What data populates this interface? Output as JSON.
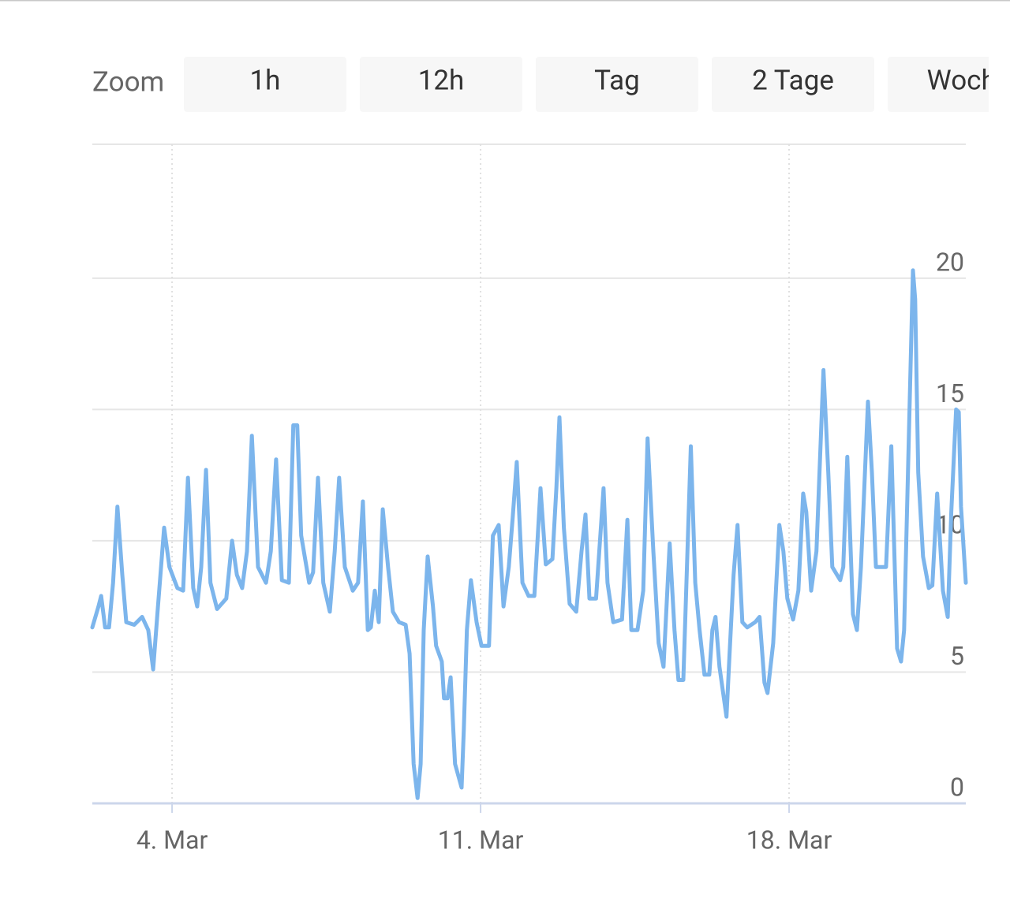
{
  "zoom": {
    "label": "Zoom",
    "buttons": [
      "1h",
      "12h",
      "Tag",
      "2 Tage",
      "Woche"
    ]
  },
  "chart_data": {
    "type": "line",
    "color": "#7cb5ec",
    "x": [
      2.19,
      2.33,
      2.39,
      2.48,
      2.57,
      2.66,
      2.76,
      2.87,
      2.96,
      3.14,
      3.32,
      3.46,
      3.57,
      3.68,
      3.82,
      3.94,
      4.12,
      4.25,
      4.36,
      4.48,
      4.57,
      4.66,
      4.77,
      4.87,
      5.02,
      5.23,
      5.36,
      5.47,
      5.59,
      5.7,
      5.81,
      5.95,
      6.13,
      6.24,
      6.36,
      6.49,
      6.65,
      6.75,
      6.84,
      6.93,
      7.11,
      7.2,
      7.31,
      7.43,
      7.58,
      7.69,
      7.79,
      7.92,
      8.1,
      8.22,
      8.33,
      8.44,
      8.51,
      8.6,
      8.69,
      8.78,
      8.9,
      9.01,
      9.15,
      9.3,
      9.39,
      9.48,
      9.57,
      9.64,
      9.71,
      9.8,
      9.92,
      9.99,
      10.12,
      10.17,
      10.25,
      10.32,
      10.42,
      10.57,
      10.62,
      10.69,
      10.78,
      10.91,
      11.02,
      11.19,
      11.28,
      11.41,
      11.52,
      11.64,
      11.73,
      11.82,
      11.95,
      12.09,
      12.22,
      12.36,
      12.48,
      12.63,
      12.72,
      12.79,
      12.89,
      13.02,
      13.17,
      13.29,
      13.38,
      13.47,
      13.62,
      13.79,
      13.88,
      14.01,
      14.21,
      14.33,
      14.42,
      14.56,
      14.69,
      14.79,
      14.92,
      15.04,
      15.15,
      15.29,
      15.4,
      15.49,
      15.6,
      15.77,
      15.87,
      15.97,
      16.08,
      16.19,
      16.26,
      16.33,
      16.42,
      16.58,
      16.65,
      16.74,
      16.83,
      16.94,
      17.05,
      17.23,
      17.33,
      17.44,
      17.51,
      17.64,
      17.78,
      17.87,
      17.96,
      18.09,
      18.21,
      18.32,
      18.39,
      18.5,
      18.62,
      18.78,
      18.89,
      18.98,
      19.16,
      19.23,
      19.32,
      19.45,
      19.54,
      19.63,
      19.79,
      19.88,
      19.97,
      20.06,
      20.2,
      20.32,
      20.45,
      20.54,
      20.61,
      20.72,
      20.81,
      20.86,
      20.93,
      21.04,
      21.17,
      21.25,
      21.36,
      21.49,
      21.6,
      21.68,
      21.79,
      21.85,
      21.9,
      22.01
    ],
    "values": [
      6.7,
      7.5,
      7.9,
      6.7,
      6.7,
      8.4,
      11.3,
      8.7,
      6.9,
      6.8,
      7.1,
      6.6,
      5.1,
      7.5,
      10.5,
      9.0,
      8.2,
      8.1,
      12.4,
      8.2,
      7.5,
      9.0,
      12.7,
      8.4,
      7.4,
      7.8,
      10.0,
      8.7,
      8.2,
      9.6,
      14.0,
      9.0,
      8.4,
      9.6,
      13.1,
      8.5,
      8.4,
      14.4,
      14.4,
      10.2,
      8.4,
      8.8,
      12.4,
      8.4,
      7.3,
      9.6,
      12.4,
      9.0,
      8.1,
      8.4,
      11.5,
      6.6,
      6.7,
      8.1,
      6.9,
      11.2,
      9.0,
      7.3,
      6.9,
      6.8,
      5.7,
      1.5,
      0.2,
      1.5,
      6.6,
      9.4,
      7.5,
      6.0,
      5.4,
      4.0,
      4.0,
      4.8,
      1.5,
      0.6,
      2.8,
      6.6,
      8.5,
      6.9,
      6.0,
      6.0,
      10.2,
      10.6,
      7.5,
      9.0,
      10.9,
      13.0,
      8.4,
      7.9,
      7.9,
      12.0,
      9.1,
      9.3,
      12.0,
      14.7,
      10.5,
      7.6,
      7.3,
      9.6,
      11.0,
      7.8,
      7.8,
      12.0,
      8.4,
      6.9,
      7.0,
      10.8,
      6.6,
      6.6,
      8.1,
      13.9,
      9.6,
      6.1,
      5.2,
      9.9,
      6.6,
      4.7,
      4.7,
      13.6,
      8.4,
      6.6,
      4.9,
      4.9,
      6.6,
      7.1,
      5.2,
      3.3,
      5.7,
      8.7,
      10.6,
      6.9,
      6.7,
      6.9,
      7.1,
      4.6,
      4.2,
      6.1,
      10.6,
      9.6,
      7.8,
      7.0,
      8.1,
      11.8,
      11.1,
      8.1,
      9.6,
      16.5,
      12.6,
      9.0,
      8.5,
      9.0,
      13.2,
      7.2,
      6.6,
      9.0,
      15.3,
      12.6,
      9.0,
      9.0,
      9.0,
      13.6,
      5.9,
      5.4,
      6.6,
      14.2,
      20.3,
      19.2,
      12.6,
      9.4,
      8.2,
      8.3,
      11.8,
      8.1,
      7.1,
      11.1,
      15.0,
      14.9,
      11.3,
      8.4
    ],
    "xlim": [
      2.19,
      22.01
    ],
    "xticks": [
      {
        "value": 4,
        "label": "4. Mar"
      },
      {
        "value": 11,
        "label": "11. Mar"
      },
      {
        "value": 18,
        "label": "18. Mar"
      }
    ],
    "ylim": [
      0,
      25.1
    ],
    "yticks": [
      0,
      5,
      10,
      15,
      20
    ],
    "grid": true
  }
}
